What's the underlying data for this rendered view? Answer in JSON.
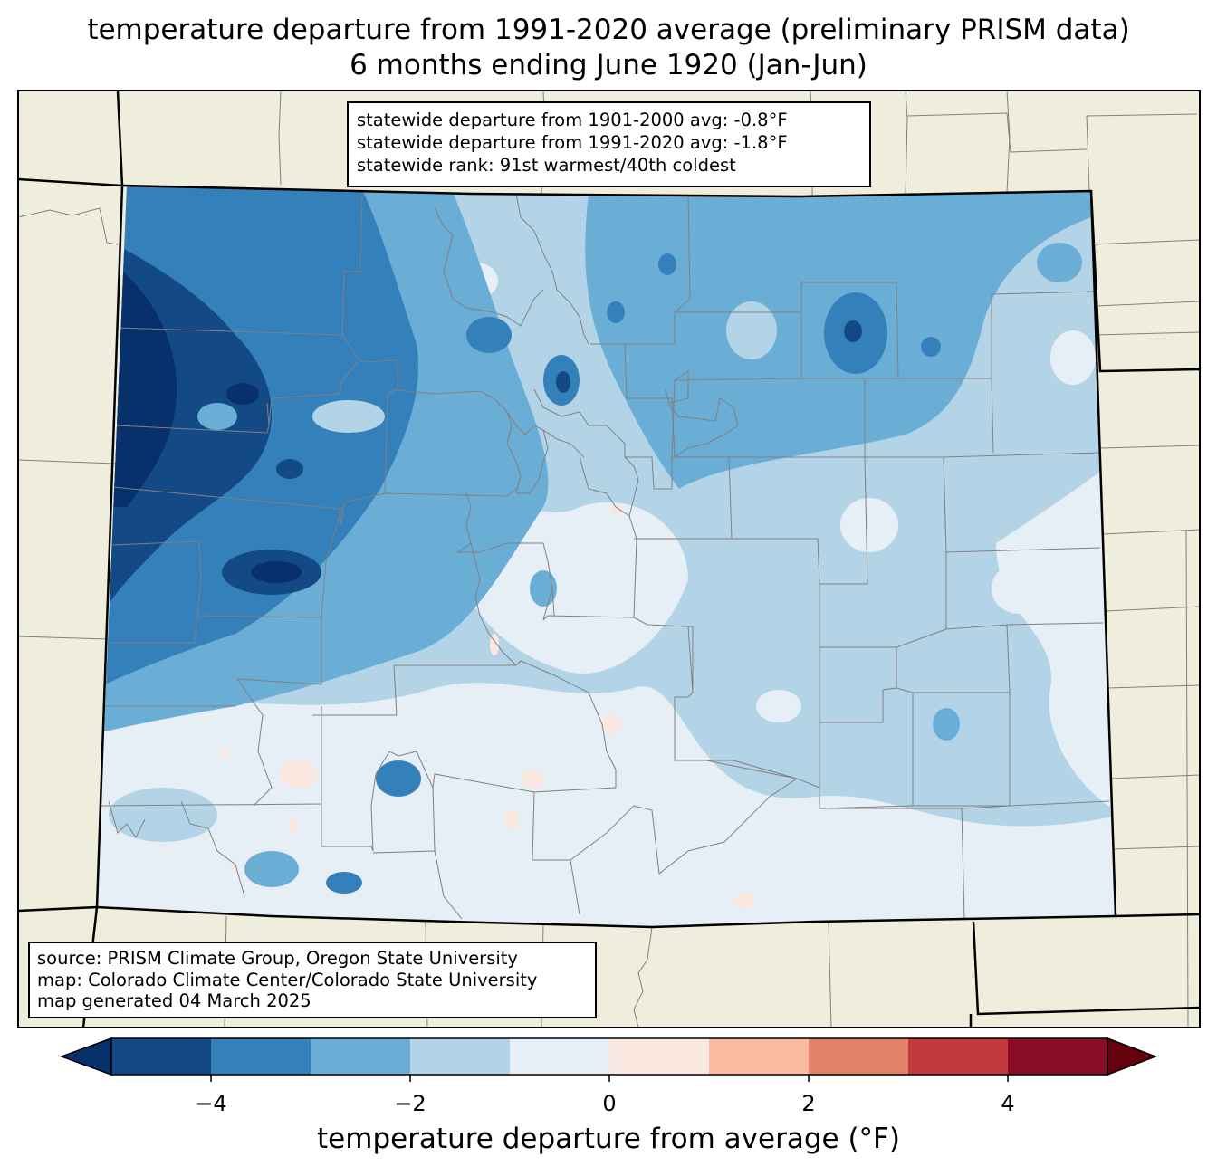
{
  "title": {
    "line1": "temperature departure from 1991-2020 average (preliminary PRISM data)",
    "line2": "6 months ending June 1920 (Jan-Jun)"
  },
  "stats": {
    "line1": "statewide departure from 1901-2000 avg: -0.8°F",
    "line2": "statewide departure from 1991-2020 avg: -1.8°F",
    "line3": "statewide rank: 91st warmest/40th coldest"
  },
  "source": {
    "line1": "source: PRISM Climate Group, Oregon State University",
    "line2": "map: Colorado Climate Center/Colorado State University",
    "line3": "map generated 04 March 2025"
  },
  "colorbar": {
    "label": "temperature departure from average (°F)",
    "ticks": [
      "−4",
      "−2",
      "0",
      "2",
      "4"
    ],
    "bins": [
      {
        "range": "< -5",
        "color": "#08306b"
      },
      {
        "range": "-5 to -4",
        "color": "#134a86"
      },
      {
        "range": "-4 to -3",
        "color": "#3380bb"
      },
      {
        "range": "-3 to -2",
        "color": "#6aaed6"
      },
      {
        "range": "-2 to -1",
        "color": "#b3d4e7"
      },
      {
        "range": "-1 to 0",
        "color": "#e6eef6"
      },
      {
        "range": "0 to 1",
        "color": "#fae8e0"
      },
      {
        "range": "1 to 2",
        "color": "#f8bba0"
      },
      {
        "range": "2 to 3",
        "color": "#e28069"
      },
      {
        "range": "3 to 4",
        "color": "#c23a3b"
      },
      {
        "range": "4 to 5",
        "color": "#8a0c25"
      },
      {
        "range": "> 5",
        "color": "#67000d"
      }
    ]
  },
  "map": {
    "land_color": "#efeedc",
    "state": "Colorado"
  }
}
